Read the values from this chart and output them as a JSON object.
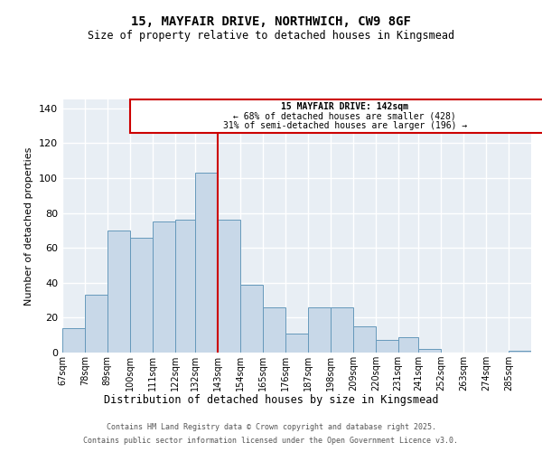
{
  "title_line1": "15, MAYFAIR DRIVE, NORTHWICH, CW9 8GF",
  "title_line2": "Size of property relative to detached houses in Kingsmead",
  "xlabel": "Distribution of detached houses by size in Kingsmead",
  "ylabel": "Number of detached properties",
  "footer_line1": "Contains HM Land Registry data © Crown copyright and database right 2025.",
  "footer_line2": "Contains public sector information licensed under the Open Government Licence v3.0.",
  "annotation_line1": "15 MAYFAIR DRIVE: 142sqm",
  "annotation_line2": "← 68% of detached houses are smaller (428)",
  "annotation_line3": "31% of semi-detached houses are larger (196) →",
  "bar_color": "#c8d8e8",
  "bar_edge_color": "#6699bb",
  "reference_line_color": "#cc0000",
  "categories": [
    "67sqm",
    "78sqm",
    "89sqm",
    "100sqm",
    "111sqm",
    "122sqm",
    "132sqm",
    "143sqm",
    "154sqm",
    "165sqm",
    "176sqm",
    "187sqm",
    "198sqm",
    "209sqm",
    "220sqm",
    "231sqm",
    "241sqm",
    "252sqm",
    "263sqm",
    "274sqm",
    "285sqm"
  ],
  "values": [
    14,
    33,
    70,
    66,
    75,
    76,
    103,
    76,
    39,
    26,
    11,
    26,
    26,
    15,
    7,
    9,
    2,
    0,
    0,
    0,
    1
  ],
  "bin_edges": [
    67,
    78,
    89,
    100,
    111,
    122,
    132,
    143,
    154,
    165,
    176,
    187,
    198,
    209,
    220,
    231,
    241,
    252,
    263,
    274,
    285,
    296
  ],
  "ylim": [
    0,
    145
  ],
  "yticks": [
    0,
    20,
    40,
    60,
    80,
    100,
    120,
    140
  ],
  "background_color": "#e8eef4",
  "grid_color": "#ffffff",
  "fig_bg_color": "#ffffff"
}
